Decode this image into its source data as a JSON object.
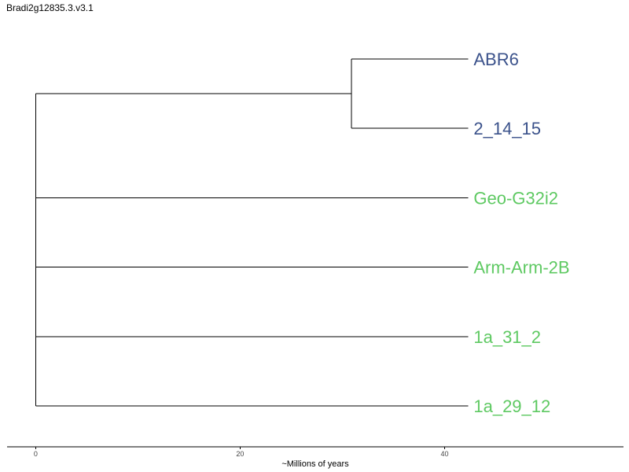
{
  "title": "Bradi2g12835.3.v3.1",
  "colors": {
    "group_a": "#3b528b",
    "group_b": "#5ec962",
    "branch": "#000000"
  },
  "axis": {
    "label": "~Millions of years",
    "range": [
      -2.8,
      57.5
    ],
    "ticks": [
      0,
      20,
      40
    ]
  },
  "tree": {
    "root_depth": 0,
    "internal_nodes": [
      {
        "id": "n1",
        "depth": 0,
        "children": [
          "n2",
          "Geo-G32i2",
          "Arm-Arm-2B",
          "1a_31_2",
          "1a_29_12"
        ]
      },
      {
        "id": "n2",
        "depth": 30.9,
        "children": [
          "ABR6",
          "2_14_15"
        ]
      }
    ],
    "leaves": [
      {
        "name": "ABR6",
        "depth": 42.3,
        "group": "group_a"
      },
      {
        "name": "2_14_15",
        "depth": 42.3,
        "group": "group_a"
      },
      {
        "name": "Geo-G32i2",
        "depth": 42.3,
        "group": "group_b"
      },
      {
        "name": "Arm-Arm-2B",
        "depth": 42.3,
        "group": "group_b"
      },
      {
        "name": "1a_31_2",
        "depth": 42.3,
        "group": "group_b"
      },
      {
        "name": "1a_29_12",
        "depth": 42.3,
        "group": "group_b"
      }
    ]
  }
}
